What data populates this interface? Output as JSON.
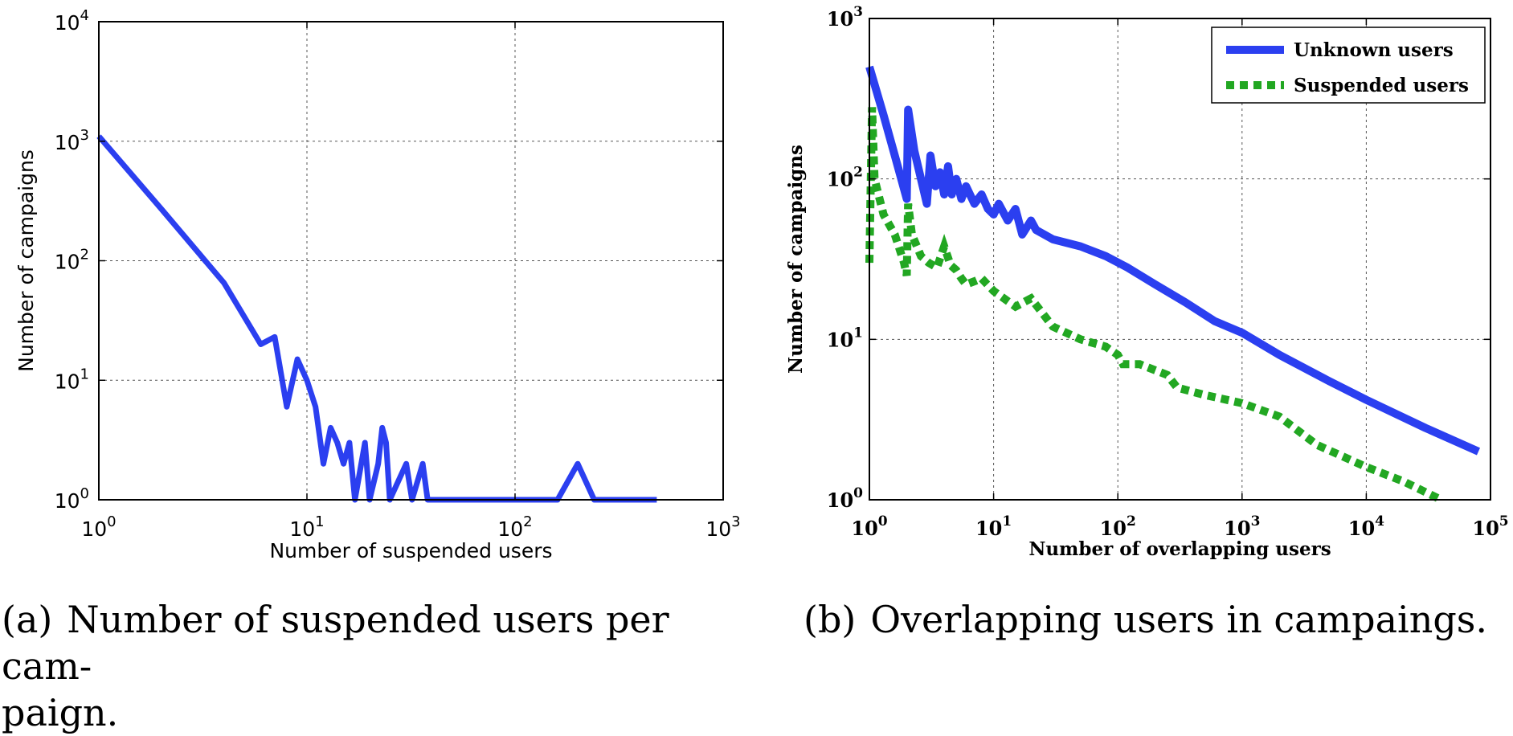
{
  "chart_data": [
    {
      "type": "line",
      "xscale": "log",
      "yscale": "log",
      "xlim": [
        1,
        1000
      ],
      "ylim": [
        1,
        10000
      ],
      "x_ticks": [
        "10^0",
        "10^1",
        "10^2",
        "10^3"
      ],
      "y_ticks": [
        "10^0",
        "10^1",
        "10^2",
        "10^3",
        "10^4"
      ],
      "xlabel": "Number of suspended users",
      "ylabel": "Number of campaigns",
      "grid": true,
      "series": [
        {
          "color": "#2b3ff0",
          "style": "solid",
          "points": [
            [
              1,
              1100
            ],
            [
              2,
              270
            ],
            [
              4,
              65
            ],
            [
              6,
              20
            ],
            [
              7,
              23
            ],
            [
              8,
              6
            ],
            [
              9,
              15
            ],
            [
              10,
              10
            ],
            [
              11,
              6
            ],
            [
              12,
              2
            ],
            [
              13,
              4
            ],
            [
              14,
              3
            ],
            [
              15,
              2
            ],
            [
              16,
              3
            ],
            [
              17,
              1
            ],
            [
              19,
              3
            ],
            [
              20,
              1
            ],
            [
              22,
              2
            ],
            [
              23,
              4
            ],
            [
              24,
              3
            ],
            [
              25,
              1
            ],
            [
              30,
              2
            ],
            [
              32,
              1
            ],
            [
              36,
              2
            ],
            [
              38,
              1
            ],
            [
              160,
              1
            ],
            [
              200,
              2
            ],
            [
              240,
              1
            ],
            [
              480,
              1
            ]
          ]
        }
      ]
    },
    {
      "type": "line",
      "xscale": "log",
      "yscale": "log",
      "xlim": [
        1,
        100000
      ],
      "ylim": [
        1,
        1000
      ],
      "x_ticks": [
        "10^0",
        "10^1",
        "10^2",
        "10^3",
        "10^4",
        "10^5"
      ],
      "y_ticks": [
        "10^0",
        "10^1",
        "10^2",
        "10^3"
      ],
      "xlabel": "Number of overlapping users",
      "ylabel": "Number of campaigns",
      "grid": true,
      "legend_position": "top-right",
      "series": [
        {
          "name": "Unknown users",
          "color": "#2b3ff0",
          "style": "solid",
          "points": [
            [
              1,
              500
            ],
            [
              1.3,
              250
            ],
            [
              1.6,
              140
            ],
            [
              2,
              75
            ],
            [
              2.05,
              270
            ],
            [
              2.3,
              150
            ],
            [
              2.6,
              100
            ],
            [
              2.9,
              70
            ],
            [
              3.1,
              140
            ],
            [
              3.4,
              90
            ],
            [
              3.7,
              110
            ],
            [
              4,
              80
            ],
            [
              4.3,
              120
            ],
            [
              4.6,
              80
            ],
            [
              5,
              100
            ],
            [
              5.5,
              75
            ],
            [
              6,
              90
            ],
            [
              7,
              70
            ],
            [
              8,
              80
            ],
            [
              9,
              65
            ],
            [
              10,
              60
            ],
            [
              11,
              70
            ],
            [
              13,
              55
            ],
            [
              15,
              65
            ],
            [
              17,
              45
            ],
            [
              20,
              55
            ],
            [
              22,
              48
            ],
            [
              30,
              42
            ],
            [
              50,
              38
            ],
            [
              80,
              33
            ],
            [
              120,
              28
            ],
            [
              200,
              22
            ],
            [
              350,
              17
            ],
            [
              600,
              13
            ],
            [
              1000,
              11
            ],
            [
              2000,
              8
            ],
            [
              5000,
              5.5
            ],
            [
              10000,
              4.2
            ],
            [
              30000,
              2.8
            ],
            [
              80000,
              2
            ]
          ]
        },
        {
          "name": "Suspended users",
          "color": "#22a722",
          "style": "dashed",
          "points": [
            [
              1,
              30
            ],
            [
              1.05,
              280
            ],
            [
              1.1,
              100
            ],
            [
              1.3,
              60
            ],
            [
              1.6,
              45
            ],
            [
              1.9,
              30
            ],
            [
              2,
              25
            ],
            [
              2.05,
              70
            ],
            [
              2.2,
              45
            ],
            [
              2.6,
              33
            ],
            [
              3,
              30
            ],
            [
              3.5,
              28
            ],
            [
              4,
              38
            ],
            [
              4.5,
              29
            ],
            [
              5,
              27
            ],
            [
              5.5,
              24
            ],
            [
              6,
              22
            ],
            [
              7,
              23
            ],
            [
              8,
              24
            ],
            [
              10,
              20
            ],
            [
              15,
              16
            ],
            [
              20,
              18
            ],
            [
              30,
              12
            ],
            [
              50,
              10
            ],
            [
              80,
              9
            ],
            [
              100,
              8
            ],
            [
              110,
              7
            ],
            [
              150,
              7
            ],
            [
              250,
              6
            ],
            [
              300,
              5
            ],
            [
              500,
              4.5
            ],
            [
              1000,
              4
            ],
            [
              2000,
              3.3
            ],
            [
              4000,
              2.2
            ],
            [
              10000,
              1.6
            ],
            [
              20000,
              1.3
            ],
            [
              40000,
              1
            ]
          ]
        }
      ]
    }
  ],
  "captions": {
    "a": {
      "label": "(a)",
      "line1": "Number of suspended users per cam-",
      "line2": "paign."
    },
    "b": {
      "label": "(b)",
      "line1": "Overlapping users in campaings."
    }
  }
}
